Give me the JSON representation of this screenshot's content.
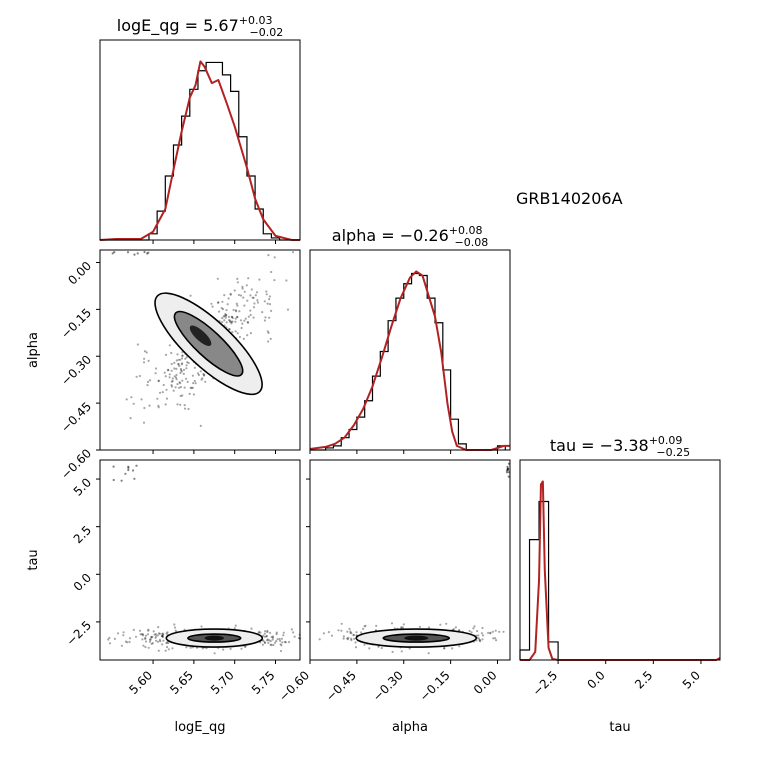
{
  "chart_data": {
    "type": "corner",
    "object_name": "GRB140206A",
    "parameters": [
      "logE_qg",
      "alpha",
      "tau"
    ],
    "colors": {
      "kde": "#b22222",
      "hist": "#000000",
      "points": "#000000"
    },
    "titles": [
      {
        "param": "logE_qg",
        "prefix": "logE_qg = 5.67",
        "sup": "+0.03",
        "sub": "−0.02"
      },
      {
        "param": "alpha",
        "prefix": "alpha = −0.26",
        "sup": "+0.08",
        "sub": "−0.08"
      },
      {
        "param": "tau",
        "prefix": "tau = −3.38",
        "sup": "+0.09",
        "sub": "−0.25"
      }
    ],
    "axes": {
      "logE_qg": {
        "range": [
          5.535,
          5.78
        ],
        "ticks": [
          5.6,
          5.65,
          5.7,
          5.75
        ],
        "tick_labels": [
          "5.60",
          "5.65",
          "5.70",
          "5.75"
        ]
      },
      "alpha": {
        "range": [
          -0.6,
          0.04
        ],
        "ticks": [
          -0.6,
          -0.45,
          -0.3,
          -0.15,
          0.0
        ],
        "tick_labels": [
          "−0.60",
          "−0.45",
          "−0.30",
          "−0.15",
          "0.00"
        ]
      },
      "tau": {
        "range": [
          -4.5,
          6.0
        ],
        "ticks": [
          -2.5,
          0.0,
          2.5,
          5.0
        ],
        "tick_labels": [
          "−2.5",
          "0.0",
          "2.5",
          "5.0"
        ]
      }
    },
    "axis_labels": {
      "logE_qg": "logE_qg",
      "alpha": "alpha",
      "tau": "tau"
    },
    "marginals": {
      "logE_qg": {
        "bin_edges": [
          5.535,
          5.545,
          5.555,
          5.565,
          5.575,
          5.585,
          5.595,
          5.605,
          5.615,
          5.625,
          5.635,
          5.645,
          5.655,
          5.665,
          5.675,
          5.685,
          5.695,
          5.705,
          5.715,
          5.725,
          5.735,
          5.745,
          5.755,
          5.765,
          5.775
        ],
        "counts": [
          0,
          0,
          0,
          0,
          0,
          0,
          6,
          28,
          62,
          92,
          120,
          146,
          164,
          172,
          172,
          160,
          144,
          100,
          62,
          30,
          6,
          2,
          0,
          0
        ],
        "kde": [
          [
            5.535,
            0
          ],
          [
            5.555,
            1
          ],
          [
            5.585,
            1
          ],
          [
            5.6,
            8
          ],
          [
            5.615,
            30
          ],
          [
            5.625,
            68
          ],
          [
            5.635,
            105
          ],
          [
            5.645,
            138
          ],
          [
            5.652,
            150
          ],
          [
            5.658,
            173
          ],
          [
            5.663,
            168
          ],
          [
            5.672,
            152
          ],
          [
            5.68,
            155
          ],
          [
            5.69,
            133
          ],
          [
            5.7,
            110
          ],
          [
            5.715,
            70
          ],
          [
            5.725,
            40
          ],
          [
            5.735,
            20
          ],
          [
            5.75,
            4
          ],
          [
            5.77,
            0
          ],
          [
            5.78,
            0
          ]
        ]
      },
      "alpha": {
        "bin_edges": [
          -0.6,
          -0.575,
          -0.55,
          -0.525,
          -0.5,
          -0.475,
          -0.45,
          -0.425,
          -0.4,
          -0.375,
          -0.35,
          -0.325,
          -0.3,
          -0.275,
          -0.25,
          -0.225,
          -0.2,
          -0.175,
          -0.15,
          -0.125,
          -0.1,
          -0.075,
          -0.05,
          -0.025,
          0.0,
          0.025
        ],
        "counts": [
          0,
          0,
          2,
          4,
          12,
          20,
          32,
          48,
          72,
          96,
          126,
          148,
          162,
          172,
          170,
          148,
          124,
          78,
          30,
          6,
          0,
          0,
          0,
          0,
          4
        ],
        "kde": [
          [
            -0.6,
            1
          ],
          [
            -0.55,
            3
          ],
          [
            -0.52,
            6
          ],
          [
            -0.49,
            12
          ],
          [
            -0.46,
            24
          ],
          [
            -0.43,
            40
          ],
          [
            -0.4,
            62
          ],
          [
            -0.37,
            90
          ],
          [
            -0.34,
            120
          ],
          [
            -0.31,
            148
          ],
          [
            -0.28,
            168
          ],
          [
            -0.26,
            174
          ],
          [
            -0.24,
            170
          ],
          [
            -0.22,
            150
          ],
          [
            -0.2,
            130
          ],
          [
            -0.18,
            95
          ],
          [
            -0.16,
            45
          ],
          [
            -0.145,
            18
          ],
          [
            -0.13,
            4
          ],
          [
            -0.1,
            0
          ],
          [
            -0.02,
            0
          ],
          [
            0.02,
            4
          ],
          [
            0.04,
            4
          ]
        ]
      },
      "tau": {
        "bin_edges": [
          -4.5,
          -4.0,
          -3.5,
          -3.0,
          -2.5
        ],
        "counts": [
          10,
          120,
          158,
          18
        ],
        "kde": [
          [
            -4.5,
            0
          ],
          [
            -4.0,
            0
          ],
          [
            -3.7,
            8
          ],
          [
            -3.5,
            80
          ],
          [
            -3.4,
            175
          ],
          [
            -3.3,
            178
          ],
          [
            -3.2,
            90
          ],
          [
            -3.0,
            12
          ],
          [
            -2.8,
            1
          ],
          [
            -2.5,
            0
          ],
          [
            0.0,
            0
          ],
          [
            5.8,
            0
          ],
          [
            6.0,
            2
          ]
        ]
      }
    }
  }
}
